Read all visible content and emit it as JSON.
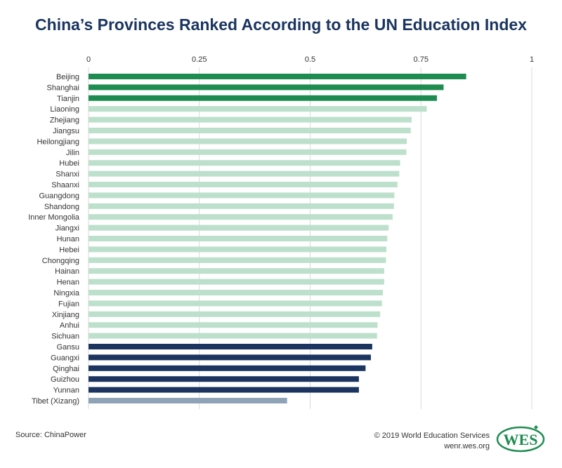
{
  "chart_data": {
    "type": "bar",
    "orientation": "horizontal",
    "title": "China’s Provinces Ranked According to the UN Education Index",
    "xlim": [
      0,
      1
    ],
    "ticks": [
      0,
      0.25,
      0.5,
      0.75,
      1
    ],
    "tick_labels": [
      "0",
      "0.25",
      "0.5",
      "0.75",
      "1"
    ],
    "categories": [
      "Beijing",
      "Shanghai",
      "Tianjin",
      "Liaoning",
      "Zhejiang",
      "Jiangsu",
      "Heilongjiang",
      "Jilin",
      "Hubei",
      "Shanxi",
      "Shaanxi",
      "Guangdong",
      "Shandong",
      "Inner Mongolia",
      "Jiangxi",
      "Hunan",
      "Hebei",
      "Chongqing",
      "Hainan",
      "Henan",
      "Ningxia",
      "Fujian",
      "Xinjiang",
      "Anhui",
      "Sichuan",
      "Gansu",
      "Guangxi",
      "Qinghai",
      "Guizhou",
      "Yunnan",
      "Tibet (Xizang)"
    ],
    "values": [
      0.852,
      0.801,
      0.786,
      0.763,
      0.729,
      0.727,
      0.718,
      0.717,
      0.703,
      0.701,
      0.697,
      0.69,
      0.689,
      0.686,
      0.677,
      0.674,
      0.672,
      0.671,
      0.667,
      0.667,
      0.664,
      0.662,
      0.658,
      0.652,
      0.651,
      0.64,
      0.637,
      0.625,
      0.61,
      0.61,
      0.448
    ],
    "bar_groups": [
      0,
      0,
      0,
      1,
      1,
      1,
      1,
      1,
      1,
      1,
      1,
      1,
      1,
      1,
      1,
      1,
      1,
      1,
      1,
      1,
      1,
      1,
      1,
      1,
      1,
      2,
      2,
      2,
      2,
      2,
      3
    ],
    "group_colors": [
      "#1e8c50",
      "#bde0cc",
      "#1b3560",
      "#8ea3b8"
    ],
    "grid": true
  },
  "footer": {
    "source": "Source: ChinaPower",
    "copyright": "© 2019 World Education Services",
    "website": "wenr.wes.org",
    "logo_text": "WES"
  },
  "colors": {
    "title": "#1b3560",
    "logo": "#1e8c50"
  }
}
